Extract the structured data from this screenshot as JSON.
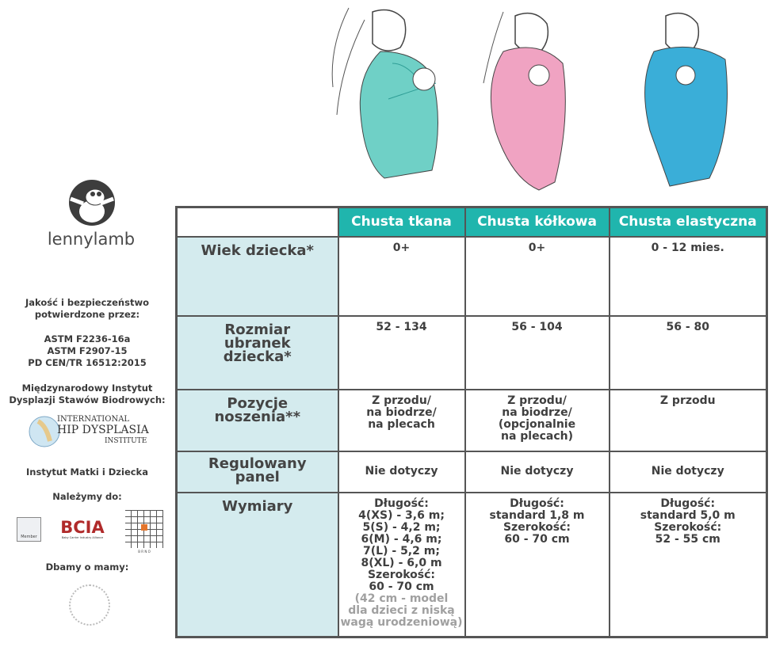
{
  "brand": {
    "name": "lennylamb"
  },
  "sidebar": {
    "quality_heading": [
      "Jakość i bezpieczeństwo",
      "potwierdzone przez:"
    ],
    "standards": [
      "ASTM F2236-16a",
      "ASTM F2907-15",
      "PD CEN/TR 16512:2015"
    ],
    "hip_heading": [
      "Międzynarodowy Instytut",
      "Dysplazji Stawów Biodrowych:"
    ],
    "hip_logo": [
      "INTERNATIONAL",
      "HIP DYSPLASIA",
      "INSTITUTE"
    ],
    "mother_child": "Instytut Matki i Dziecka",
    "member_heading": "Należymy do:",
    "member_logos": {
      "astm": "Member",
      "bcia": "BCIA",
      "bcia_sub": "Baby Carrier Industry Alliance",
      "brno": "B R N O"
    },
    "care_heading": "Dbamy o mamy:"
  },
  "table": {
    "columns": [
      "Chusta tkana",
      "Chusta kółkowa",
      "Chusta elastyczna"
    ],
    "rows": [
      {
        "label": [
          "Wiek dziecka*"
        ],
        "values": [
          [
            "0+"
          ],
          [
            "0+"
          ],
          [
            "0 - 12 mies."
          ]
        ]
      },
      {
        "label": [
          "Rozmiar",
          "ubranek",
          "dziecka*"
        ],
        "values": [
          [
            "52 - 134"
          ],
          [
            "56 - 104"
          ],
          [
            "56 - 80"
          ]
        ]
      },
      {
        "label": [
          "Pozycje",
          "noszenia**"
        ],
        "values": [
          [
            "Z przodu/",
            "na biodrze/",
            "na plecach"
          ],
          [
            "Z przodu/",
            "na biodrze/",
            "(opcjonalnie",
            "na plecach)"
          ],
          [
            "Z przodu"
          ]
        ]
      },
      {
        "label": [
          "Regulowany",
          "panel"
        ],
        "values": [
          [
            "Nie dotyczy"
          ],
          [
            "Nie dotyczy"
          ],
          [
            "Nie dotyczy"
          ]
        ]
      },
      {
        "label": [
          "Wymiary"
        ],
        "values": [
          [
            "Długość:",
            "4(XS) - 3,6 m;",
            "5(S) - 4,2 m;",
            "6(M) - 4,6 m;",
            "7(L) - 5,2 m;",
            "8(XL) - 6,0 m",
            "Szerokość:",
            "60 - 70 cm"
          ],
          [
            "Długość:",
            "standard 1,8 m",
            "Szerokość:",
            "60 - 70 cm"
          ],
          [
            "Długość:",
            "standard 5,0 m",
            "Szerokość:",
            "52 - 55 cm"
          ]
        ]
      }
    ],
    "note": [
      "(42 cm - model",
      "dla dzieci z niską",
      "wagą urodzeniową)"
    ]
  },
  "colors": {
    "header": "#20b5ad",
    "label_bg": "#d4ebee",
    "border": "#555555",
    "woven": "#5cc9c0",
    "ring": "#e88db0",
    "stretchy": "#2aa6d6"
  }
}
